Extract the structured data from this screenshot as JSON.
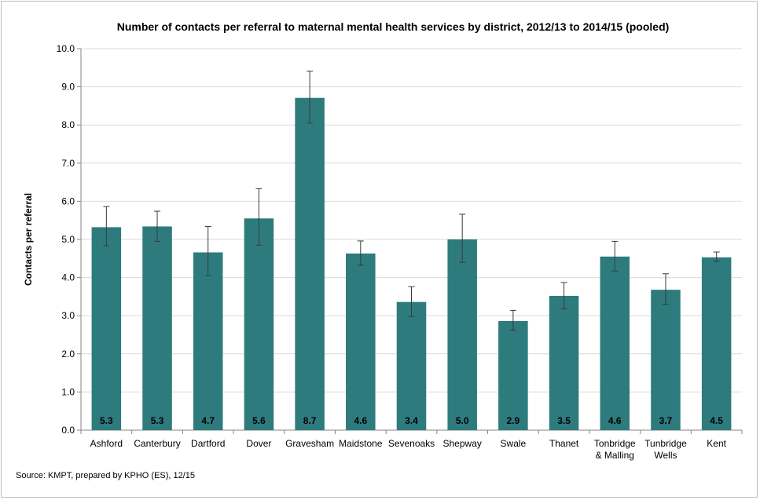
{
  "chart_data": {
    "type": "bar",
    "title": "Number of contacts per referral to maternal mental health services by district, 2012/13 to 2014/15 (pooled)",
    "xlabel": "",
    "ylabel": "Contacts per referral",
    "ylim": [
      0,
      10
    ],
    "yticks": [
      "0.0",
      "1.0",
      "2.0",
      "3.0",
      "4.0",
      "5.0",
      "6.0",
      "7.0",
      "8.0",
      "9.0",
      "10.0"
    ],
    "grid": "horizontal",
    "bar_color": "#2e7b7e",
    "categories": [
      [
        "Ashford"
      ],
      [
        "Canterbury"
      ],
      [
        "Dartford"
      ],
      [
        "Dover"
      ],
      [
        "Gravesham"
      ],
      [
        "Maidstone"
      ],
      [
        "Sevenoaks"
      ],
      [
        "Shepway"
      ],
      [
        "Swale"
      ],
      [
        "Thanet"
      ],
      [
        "Tonbridge",
        "& Malling"
      ],
      [
        "Tunbridge",
        "Wells"
      ],
      [
        "Kent"
      ]
    ],
    "values": [
      5.32,
      5.34,
      4.66,
      5.55,
      8.71,
      4.63,
      3.36,
      5.0,
      2.86,
      3.52,
      4.55,
      3.68,
      4.53
    ],
    "data_labels": [
      "5.3",
      "5.3",
      "4.7",
      "5.6",
      "8.7",
      "4.6",
      "3.4",
      "5.0",
      "2.9",
      "3.5",
      "4.6",
      "3.7",
      "4.5"
    ],
    "error_low": [
      4.83,
      4.95,
      4.05,
      4.85,
      8.05,
      4.32,
      2.98,
      4.4,
      2.62,
      3.18,
      4.17,
      3.3,
      4.42
    ],
    "error_high": [
      5.86,
      5.74,
      5.34,
      6.33,
      9.41,
      4.96,
      3.76,
      5.66,
      3.14,
      3.87,
      4.95,
      4.1,
      4.67
    ]
  },
  "source": "Source: KMPT, prepared by KPHO (ES), 12/15"
}
